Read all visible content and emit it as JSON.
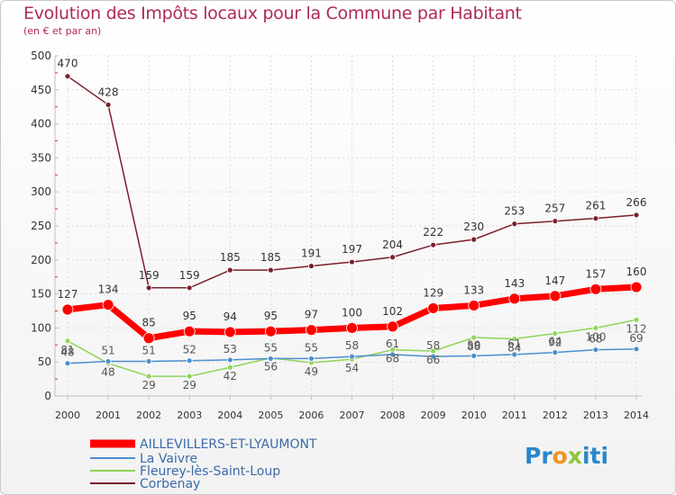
{
  "chart_data": {
    "type": "line",
    "title": "Evolution des Impôts locaux pour la Commune par Habitant",
    "subtitle": "(en € et par an)",
    "xlabel": "",
    "ylabel": "",
    "ylim": [
      0,
      500
    ],
    "yticks": [
      0,
      50,
      100,
      150,
      200,
      250,
      300,
      350,
      400,
      450,
      500
    ],
    "x": [
      "2000",
      "2001",
      "2002",
      "2003",
      "2004",
      "2005",
      "2006",
      "2007",
      "2008",
      "2009",
      "2010",
      "2011",
      "2012",
      "2013",
      "2014"
    ],
    "grid": true,
    "legend_position": "bottom-left",
    "series": [
      {
        "name": "Corbenay",
        "color": "#7a1f2b",
        "values": [
          470,
          428,
          159,
          159,
          185,
          185,
          191,
          197,
          204,
          222,
          230,
          253,
          257,
          261,
          266
        ]
      },
      {
        "name": "Fleurey-lès-Saint-Loup",
        "color": "#8fd45a",
        "values": [
          81,
          48,
          29,
          29,
          42,
          56,
          49,
          54,
          68,
          66,
          86,
          84,
          92,
          100,
          112
        ]
      },
      {
        "name": "La Vaivre",
        "color": "#4b8fd0",
        "values": [
          48,
          51,
          51,
          52,
          53,
          55,
          55,
          58,
          61,
          58,
          59,
          61,
          64,
          68,
          69
        ]
      },
      {
        "name": "AILLEVILLERS-ET-LYAUMONT",
        "color": "#ff0000",
        "values": [
          127,
          134,
          85,
          95,
          94,
          95,
          97,
          100,
          102,
          129,
          133,
          143,
          147,
          157,
          160
        ]
      }
    ],
    "legend": [
      "AILLEVILLERS-ET-LYAUMONT",
      "La Vaivre",
      "Fleurey-lès-Saint-Loup",
      "Corbenay"
    ]
  },
  "logo": {
    "part1": "Pr",
    "part2": "o",
    "part3": "x",
    "part4": "iti"
  }
}
